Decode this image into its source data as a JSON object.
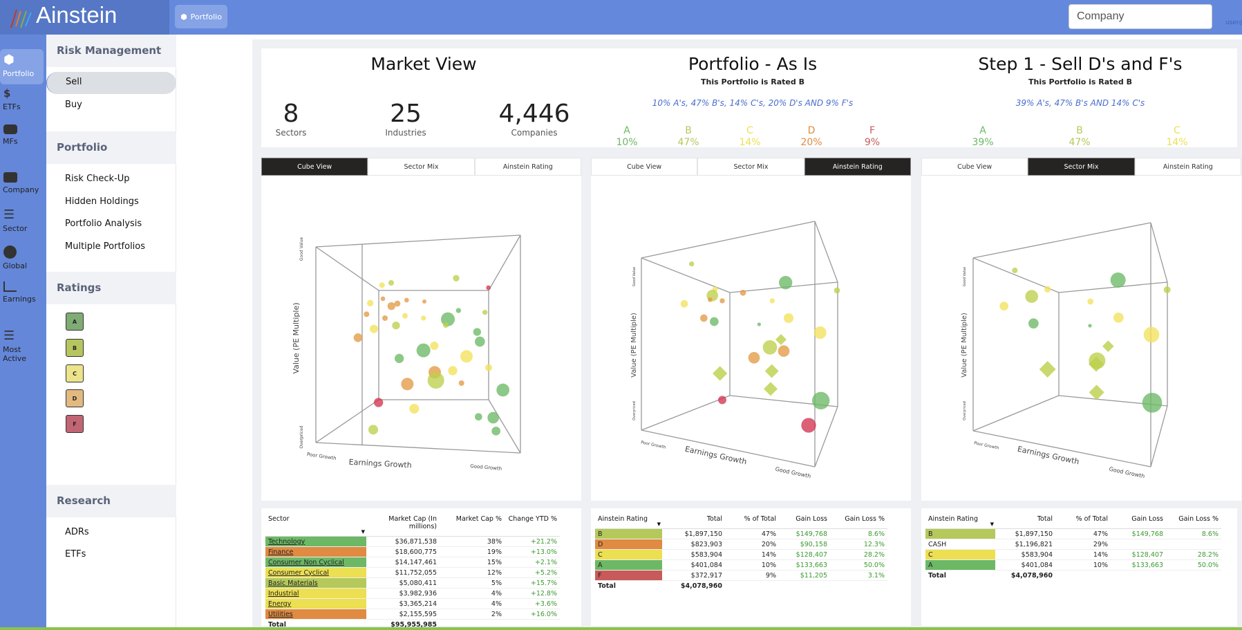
{
  "header": {
    "app_name": "Ainstein",
    "portfolio_button": "Portfolio",
    "search_placeholder": "Company",
    "user": "user@"
  },
  "rail": [
    {
      "label": "Portfolio",
      "icon": "cube-icon"
    },
    {
      "label": "ETFs",
      "icon": "hand-dollar-icon"
    },
    {
      "label": "MFs",
      "icon": "handshake-icon"
    },
    {
      "label": "Company",
      "icon": "briefcase-icon"
    },
    {
      "label": "Sector",
      "icon": "layers-icon"
    },
    {
      "label": "Global",
      "icon": "globe-icon"
    },
    {
      "label": "Earnings",
      "icon": "chart-line-icon"
    },
    {
      "label": "Most Active",
      "icon": "layers-icon"
    }
  ],
  "sidebar": {
    "risk_management": {
      "title": "Risk Management",
      "items": [
        "Sell",
        "Buy"
      ]
    },
    "portfolio": {
      "title": "Portfolio",
      "items": [
        "Risk Check-Up",
        "Hidden Holdings",
        "Portfolio Analysis",
        "Multiple Portfolios"
      ]
    },
    "ratings": {
      "title": "Ratings",
      "items": [
        "A",
        "B",
        "C",
        "D",
        "F"
      ]
    },
    "research": {
      "title": "Research",
      "items": [
        "ADRs",
        "ETFs"
      ]
    }
  },
  "colors": {
    "A": "#6cb865",
    "B": "#b4c95a",
    "C": "#ecdf52",
    "D": "#e08a42",
    "F": "#c95a5a",
    "accent": "#6489dc",
    "rating_boxes": [
      "#7fac75",
      "#b7c55f",
      "#ece38b",
      "#e2b97f",
      "#c16574"
    ]
  },
  "market_view": {
    "title": "Market View",
    "stats": [
      {
        "value": "8",
        "label": "Sectors"
      },
      {
        "value": "25",
        "label": "Industries"
      },
      {
        "value": "4,446",
        "label": "Companies"
      }
    ]
  },
  "as_is": {
    "title": "Portfolio - As Is",
    "rated": "This Portfolio is Rated B",
    "mix": "10% A's,  47% B's,  14% C's,  20% D's  AND  9% F's",
    "grades": [
      {
        "g": "A",
        "p": "10%"
      },
      {
        "g": "B",
        "p": "47%"
      },
      {
        "g": "C",
        "p": "14%"
      },
      {
        "g": "D",
        "p": "20%"
      },
      {
        "g": "F",
        "p": "9%"
      }
    ]
  },
  "step1": {
    "title": "Step 1 - Sell D's and F's",
    "rated": "This Portfolio is Rated B",
    "mix": "39% A's,  47% B's  AND  14% C's",
    "grades": [
      {
        "g": "A",
        "p": "39%"
      },
      {
        "g": "B",
        "p": "47%"
      },
      {
        "g": "C",
        "p": "14%"
      }
    ]
  },
  "tabs": [
    "Cube View",
    "Sector Mix",
    "Ainstein Rating"
  ],
  "active_tabs": [
    0,
    2,
    1
  ],
  "cube_axes": {
    "y": "Value (PE Multiple)",
    "y_top": "Good Value",
    "y_bottom": "Overpriced",
    "x": "Earnings Growth",
    "x_left": "Poor Growth",
    "x_right": "Good Growth"
  },
  "sector_table": {
    "headers": [
      "Sector",
      "Market Cap (In millions)",
      "Market Cap %",
      "Change YTD %"
    ],
    "rows": [
      [
        "Technology",
        "$36,871,538",
        "38%",
        "+21.2%",
        "A"
      ],
      [
        "Finance",
        "$18,600,775",
        "19%",
        "+13.0%",
        "D"
      ],
      [
        "Consumer Non Cyclical",
        "$14,147,461",
        "15%",
        "+2.1%",
        "A"
      ],
      [
        "Consumer Cyclical",
        "$11,752,055",
        "12%",
        "+5.2%",
        "C"
      ],
      [
        "Basic Materials",
        "$5,080,411",
        "5%",
        "+15.7%",
        "B"
      ],
      [
        "Industrial",
        "$3,982,936",
        "4%",
        "+12.8%",
        "C"
      ],
      [
        "Energy",
        "$3,365,214",
        "4%",
        "+3.6%",
        "C"
      ],
      [
        "Utilities",
        "$2,155,595",
        "2%",
        "+16.0%",
        "D"
      ]
    ],
    "total_label": "Total",
    "total": "$95,955,985"
  },
  "as_is_table": {
    "headers": [
      "Ainstein Rating",
      "Total",
      "% of Total",
      "Gain Loss",
      "Gain Loss %"
    ],
    "rows": [
      [
        "B",
        "$1,897,150",
        "47%",
        "$149,768",
        "8.6%"
      ],
      [
        "D",
        "$823,903",
        "20%",
        "$90,158",
        "12.3%"
      ],
      [
        "C",
        "$583,904",
        "14%",
        "$128,407",
        "28.2%"
      ],
      [
        "A",
        "$401,084",
        "10%",
        "$133,663",
        "50.0%"
      ],
      [
        "F",
        "$372,917",
        "9%",
        "$11,205",
        "3.1%"
      ]
    ],
    "total_label": "Total",
    "total": "$4,078,960"
  },
  "step1_table": {
    "headers": [
      "Ainstein Rating",
      "Total",
      "% of Total",
      "Gain Loss",
      "Gain Loss %"
    ],
    "rows": [
      [
        "B",
        "$1,897,150",
        "47%",
        "$149,768",
        "8.6%"
      ],
      [
        "CASH",
        "$1,196,821",
        "29%",
        "",
        ""
      ],
      [
        "C",
        "$583,904",
        "14%",
        "$128,407",
        "28.2%"
      ],
      [
        "A",
        "$401,084",
        "10%",
        "$133,663",
        "50.0%"
      ]
    ],
    "total_label": "Total",
    "total": "$4,078,960"
  }
}
